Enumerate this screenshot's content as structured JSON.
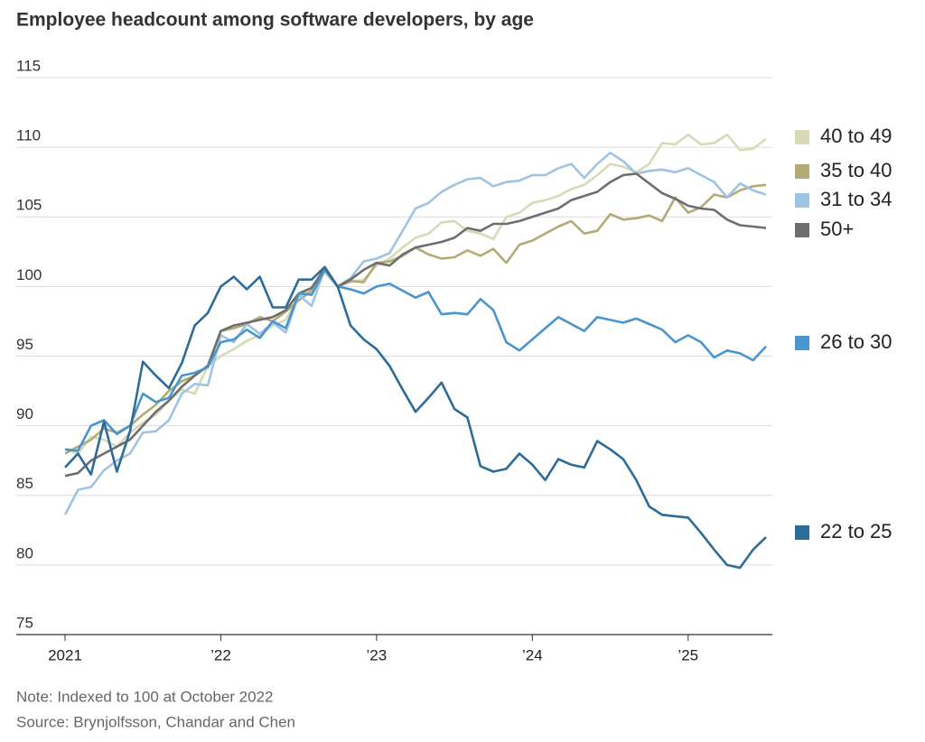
{
  "chart_data": {
    "type": "line",
    "title": "Employee headcount among software developers, by age",
    "note": "Note: Indexed to 100 at October 2022",
    "source": "Source: Brynjolfsson, Chandar and Chen",
    "x": [
      2021,
      2021.083,
      2021.167,
      2021.25,
      2021.333,
      2021.417,
      2021.5,
      2021.583,
      2021.667,
      2021.75,
      2021.833,
      2021.917,
      2022,
      2022.083,
      2022.167,
      2022.25,
      2022.333,
      2022.417,
      2022.5,
      2022.583,
      2022.667,
      2022.75,
      2022.833,
      2022.917,
      2023,
      2023.083,
      2023.167,
      2023.25,
      2023.333,
      2023.417,
      2023.5,
      2023.583,
      2023.667,
      2023.75,
      2023.833,
      2023.917,
      2024,
      2024.083,
      2024.167,
      2024.25,
      2024.333,
      2024.417,
      2024.5,
      2024.583,
      2024.667,
      2024.75,
      2024.833,
      2024.917,
      2025,
      2025.083,
      2025.167,
      2025.25,
      2025.333,
      2025.417,
      2025.5
    ],
    "xlim": [
      2021,
      2025.5
    ],
    "xticks": [
      2021,
      {
        "value": 2022,
        "label": "’22"
      },
      {
        "value": 2023,
        "label": "’23"
      },
      {
        "value": 2024,
        "label": "’24"
      },
      {
        "value": 2025,
        "label": "’25"
      }
    ],
    "ylim": [
      75,
      115
    ],
    "yticks": [
      75,
      80,
      85,
      90,
      95,
      100,
      105,
      110,
      115
    ],
    "grid": true,
    "legend": "right",
    "series": [
      {
        "name": "40 to 49",
        "color": "#d6dab6",
        "values": [
          88.3,
          88,
          89.2,
          89,
          88.5,
          89.5,
          90.2,
          90.8,
          91.8,
          92.6,
          92.3,
          94.3,
          95,
          95.5,
          96.1,
          96.5,
          97.2,
          97.6,
          99.3,
          99.8,
          101,
          100,
          100.3,
          100.5,
          101.5,
          102,
          102.8,
          103.5,
          103.8,
          104.6,
          104.7,
          104,
          103.8,
          103.4,
          105,
          105.3,
          106,
          106.2,
          106.5,
          107,
          107.3,
          108,
          108.8,
          108.6,
          108.2,
          108.8,
          110.3,
          110.2,
          110.9,
          110.2,
          110.3,
          110.9,
          109.8,
          109.9,
          110.6
        ]
      },
      {
        "name": "35 to 40",
        "color": "#b3ab76",
        "values": [
          88,
          88.5,
          89,
          89.8,
          89.5,
          90,
          90.8,
          91.5,
          92.5,
          93.2,
          93.6,
          94.3,
          96.8,
          97,
          97.3,
          97.8,
          97.5,
          98.2,
          99,
          99.7,
          101.2,
          100,
          100.4,
          100.3,
          101.7,
          101.8,
          102.2,
          102.8,
          102.3,
          102,
          102.1,
          102.6,
          102.2,
          102.7,
          101.7,
          103,
          103.3,
          103.8,
          104.3,
          104.7,
          103.8,
          104,
          105.2,
          104.8,
          104.9,
          105.1,
          104.7,
          106.4,
          105.3,
          105.7,
          106.6,
          106.4,
          106.9,
          107.2,
          107.3
        ]
      },
      {
        "name": "31 to 34",
        "color": "#9fc4e3",
        "values": [
          83.6,
          85.4,
          85.6,
          86.8,
          87.5,
          88,
          89.5,
          89.6,
          90.4,
          92.3,
          93,
          92.9,
          96.5,
          96,
          97.3,
          96.6,
          97.4,
          96.7,
          99.4,
          98.6,
          101.3,
          100,
          100.6,
          101.8,
          102,
          102.4,
          104,
          105.6,
          106,
          106.8,
          107.3,
          107.7,
          107.8,
          107.2,
          107.5,
          107.6,
          108,
          108,
          108.5,
          108.8,
          107.8,
          108.8,
          109.6,
          109,
          108.1,
          108.3,
          108.4,
          108.2,
          108.5,
          108,
          107.5,
          106.4,
          107.4,
          106.9,
          106.6
        ]
      },
      {
        "name": "50+",
        "color": "#6e6e6e",
        "values": [
          86.4,
          86.6,
          87.5,
          88,
          88.5,
          89,
          90,
          91,
          91.8,
          92.8,
          93.6,
          94.3,
          96.8,
          97.2,
          97.4,
          97.6,
          97.8,
          98.3,
          99.5,
          99.9,
          101.3,
          100,
          100.5,
          101.2,
          101.7,
          101.5,
          102.3,
          102.8,
          103,
          103.2,
          103.5,
          104.2,
          104,
          104.5,
          104.5,
          104.7,
          105,
          105.3,
          105.6,
          106.2,
          106.5,
          106.8,
          107.5,
          108,
          108.1,
          107.4,
          106.7,
          106.3,
          105.8,
          105.6,
          105.5,
          104.8,
          104.4,
          104.3,
          104.2
        ]
      },
      {
        "name": "26 to 30",
        "color": "#4a95ce",
        "values": [
          88.3,
          88.2,
          90,
          90.4,
          89.4,
          90,
          92.3,
          91.7,
          92,
          93.6,
          93.8,
          94.2,
          96,
          96.2,
          96.9,
          96.3,
          97.5,
          97,
          99.5,
          99.4,
          101.2,
          100,
          99.8,
          99.5,
          100,
          100.2,
          99.7,
          99.2,
          99.6,
          98,
          98.1,
          98,
          99.1,
          98.3,
          96,
          95.4,
          96.2,
          97,
          97.8,
          97.3,
          96.8,
          97.8,
          97.6,
          97.4,
          97.7,
          97.3,
          96.9,
          96,
          96.5,
          96,
          94.9,
          95.4,
          95.2,
          94.7,
          95.7
        ]
      },
      {
        "name": "22 to 25",
        "color": "#2d6c98",
        "values": [
          87,
          88,
          86.5,
          90.3,
          86.7,
          89.6,
          94.6,
          93.6,
          92.7,
          94.5,
          97.2,
          98.1,
          100,
          100.7,
          99.8,
          100.7,
          98.5,
          98.5,
          100.5,
          100.5,
          101.4,
          100,
          97.2,
          96.2,
          95.5,
          94.3,
          92.6,
          91,
          92,
          93.1,
          91.2,
          90.6,
          87.1,
          86.7,
          86.9,
          88,
          87.2,
          86.1,
          87.6,
          87.2,
          87,
          88.9,
          88.3,
          87.6,
          86.1,
          84.2,
          83.6,
          83.5,
          83.4,
          82.3,
          81.1,
          80,
          79.8,
          81.1,
          82
        ]
      }
    ]
  }
}
